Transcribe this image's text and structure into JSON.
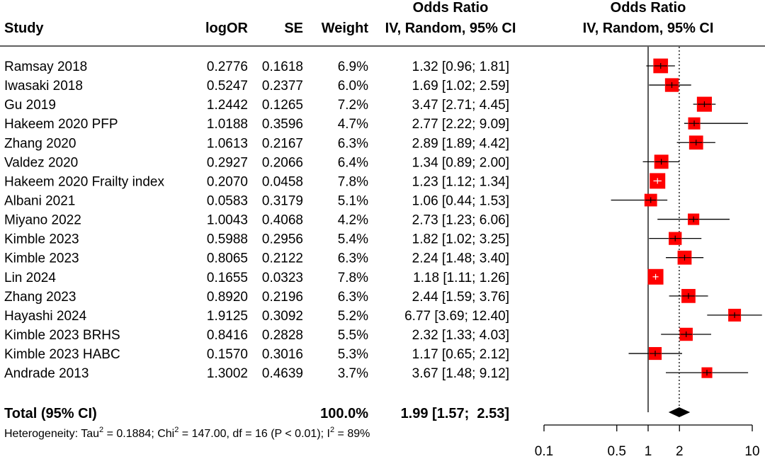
{
  "header": {
    "study": "Study",
    "logor": "logOR",
    "se": "SE",
    "weight": "Weight",
    "or_title_1": "Odds Ratio",
    "or_title_2": "IV, Random, 95% CI",
    "plot_title_1": "Odds Ratio",
    "plot_title_2": "IV, Random, 95% CI"
  },
  "total": {
    "label": "Total (95% CI)",
    "weight": "100.0%",
    "or_text": "1.99 [1.57;  2.53]",
    "or": 1.99,
    "lower": 1.57,
    "upper": 2.53
  },
  "heterogeneity": {
    "t1": "Heterogeneity: Tau",
    "t2": " = 0.1884; Chi",
    "t3": " = 147.00, df = 16 (P < 0.01); I",
    "t4": " = 89%",
    "sup": "2"
  },
  "chart_data": {
    "type": "forest",
    "x_scale": "log",
    "xlim": [
      0.1,
      10
    ],
    "x_ticks": [
      0.1,
      0.5,
      1,
      2,
      10
    ],
    "x_tick_labels": [
      "0.1",
      "0.5",
      "1",
      "2",
      "10"
    ],
    "null_line": 1,
    "pooled_line": 1.99,
    "colors": {
      "box": "#ff0000",
      "line": "#000000"
    },
    "studies": [
      {
        "study": "Ramsay 2018",
        "logor": "0.2776",
        "se": "0.1618",
        "weight": "6.9%",
        "w": 6.9,
        "or": 1.32,
        "lower": 0.96,
        "upper": 1.81,
        "or_text": "1.32 [0.96;  1.81]"
      },
      {
        "study": "Iwasaki 2018",
        "logor": "0.5247",
        "se": "0.2377",
        "weight": "6.0%",
        "w": 6.0,
        "or": 1.69,
        "lower": 1.02,
        "upper": 2.59,
        "or_text": "1.69 [1.02;  2.59]"
      },
      {
        "study": "Gu 2019",
        "logor": "1.2442",
        "se": "0.1265",
        "weight": "7.2%",
        "w": 7.2,
        "or": 3.47,
        "lower": 2.71,
        "upper": 4.45,
        "or_text": "3.47 [2.71;  4.45]"
      },
      {
        "study": "Hakeem 2020 PFP",
        "logor": "1.0188",
        "se": "0.3596",
        "weight": "4.7%",
        "w": 4.7,
        "or": 2.77,
        "lower": 2.22,
        "upper": 9.09,
        "or_text": "2.77 [2.22;  9.09]"
      },
      {
        "study": "Zhang 2020",
        "logor": "1.0613",
        "se": "0.2167",
        "weight": "6.3%",
        "w": 6.3,
        "or": 2.89,
        "lower": 1.89,
        "upper": 4.42,
        "or_text": "2.89 [1.89;  4.42]"
      },
      {
        "study": "Valdez 2020",
        "logor": "0.2927",
        "se": "0.2066",
        "weight": "6.4%",
        "w": 6.4,
        "or": 1.34,
        "lower": 0.89,
        "upper": 2.0,
        "or_text": "1.34 [0.89;  2.00]"
      },
      {
        "study": "Hakeem 2020 Frailty index",
        "logor": "0.2070",
        "se": "0.0458",
        "weight": "7.8%",
        "w": 7.8,
        "or": 1.23,
        "lower": 1.12,
        "upper": 1.34,
        "or_text": "1.23 [1.12;  1.34]"
      },
      {
        "study": "Albani 2021",
        "logor": "0.0583",
        "se": "0.3179",
        "weight": "5.1%",
        "w": 5.1,
        "or": 1.06,
        "lower": 0.44,
        "upper": 1.53,
        "or_text": "1.06 [0.44;  1.53]"
      },
      {
        "study": "Miyano 2022",
        "logor": "1.0043",
        "se": "0.4068",
        "weight": "4.2%",
        "w": 4.2,
        "or": 2.73,
        "lower": 1.23,
        "upper": 6.06,
        "or_text": "2.73 [1.23;  6.06]"
      },
      {
        "study": "Kimble 2023",
        "logor": "0.5988",
        "se": "0.2956",
        "weight": "5.4%",
        "w": 5.4,
        "or": 1.82,
        "lower": 1.02,
        "upper": 3.25,
        "or_text": "1.82 [1.02;  3.25]"
      },
      {
        "study": "Kimble 2023",
        "logor": "0.8065",
        "se": "0.2122",
        "weight": "6.3%",
        "w": 6.3,
        "or": 2.24,
        "lower": 1.48,
        "upper": 3.4,
        "or_text": "2.24 [1.48;  3.40]"
      },
      {
        "study": "Lin 2024",
        "logor": "0.1655",
        "se": "0.0323",
        "weight": "7.8%",
        "w": 7.8,
        "or": 1.18,
        "lower": 1.11,
        "upper": 1.26,
        "or_text": "1.18 [1.11;  1.26]"
      },
      {
        "study": "Zhang 2023",
        "logor": "0.8920",
        "se": "0.2196",
        "weight": "6.3%",
        "w": 6.3,
        "or": 2.44,
        "lower": 1.59,
        "upper": 3.76,
        "or_text": "2.44 [1.59;  3.76]"
      },
      {
        "study": "Hayashi 2024",
        "logor": "1.9125",
        "se": "0.3092",
        "weight": "5.2%",
        "w": 5.2,
        "or": 6.77,
        "lower": 3.69,
        "upper": 12.4,
        "or_text": "6.77 [3.69; 12.40]"
      },
      {
        "study": "Kimble 2023 BRHS",
        "logor": "0.8416",
        "se": "0.2828",
        "weight": "5.5%",
        "w": 5.5,
        "or": 2.32,
        "lower": 1.33,
        "upper": 4.03,
        "or_text": "2.32 [1.33;  4.03]"
      },
      {
        "study": "Kimble 2023 HABC",
        "logor": "0.1570",
        "se": "0.3016",
        "weight": "5.3%",
        "w": 5.3,
        "or": 1.17,
        "lower": 0.65,
        "upper": 2.12,
        "or_text": "1.17 [0.65;  2.12]"
      },
      {
        "study": "Andrade 2013",
        "logor": "1.3002",
        "se": "0.4639",
        "weight": "3.7%",
        "w": 3.7,
        "or": 3.67,
        "lower": 1.48,
        "upper": 9.12,
        "or_text": "3.67 [1.48;  9.12]"
      }
    ]
  }
}
